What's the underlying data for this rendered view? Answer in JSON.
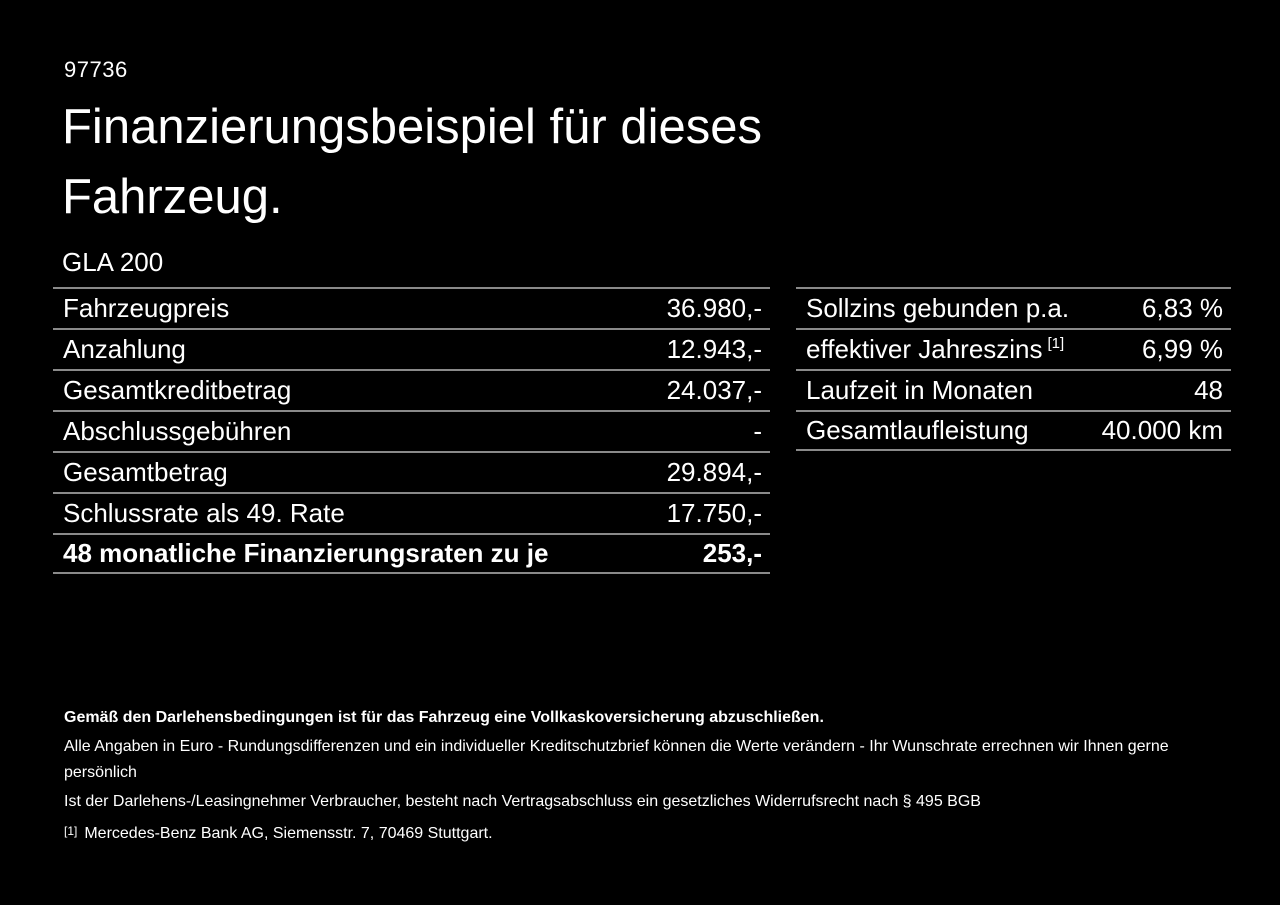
{
  "page": {
    "ref_number": "97736",
    "title_line1": "Finanzierungsbeispiel für dieses",
    "title_line2": "Fahrzeug.",
    "model": "GLA 200"
  },
  "left_table": {
    "rows": [
      {
        "label": "Fahrzeugpreis",
        "value": "36.980,-"
      },
      {
        "label": "Anzahlung",
        "value": "12.943,-"
      },
      {
        "label": "Gesamtkreditbetrag",
        "value": "24.037,-"
      },
      {
        "label": "Abschlussgebühren",
        "value": "-"
      },
      {
        "label": "Gesamtbetrag",
        "value": "29.894,-"
      },
      {
        "label": "Schlussrate als 49. Rate",
        "value": "17.750,-"
      },
      {
        "label": "48 monatliche Finanzierungsraten zu je",
        "value": "253,-"
      }
    ]
  },
  "right_table": {
    "rows": [
      {
        "label": "Sollzins gebunden p.a.",
        "value": "6,83 %"
      },
      {
        "label": "effektiver Jahreszins",
        "superscript": "[1]",
        "value": "6,99 %"
      },
      {
        "label": "Laufzeit in Monaten",
        "value": "48"
      },
      {
        "label": "Gesamtlaufleistung",
        "value": "40.000 km"
      }
    ]
  },
  "footnotes": {
    "bold_note": "Gemäß den Darlehensbedingungen ist für das Fahrzeug eine Vollkaskoversicherung abzuschließen.",
    "note2": "Alle Angaben in Euro - Rundungsdifferenzen und ein individueller Kreditschutzbrief können die Werte verändern - Ihr Wunschrate errechnen wir Ihnen gerne persönlich",
    "note3": "Ist der Darlehens-/Leasingnehmer Verbraucher, besteht nach Vertragsabschluss ein gesetzliches Widerrufsrecht nach § 495 BGB",
    "marker": "[1]",
    "marker_text": "Mercedes-Benz Bank AG, Siemensstr. 7, 70469 Stuttgart."
  },
  "colors": {
    "background": "#000000",
    "text": "#ffffff",
    "divider": "#8a8a8a"
  }
}
